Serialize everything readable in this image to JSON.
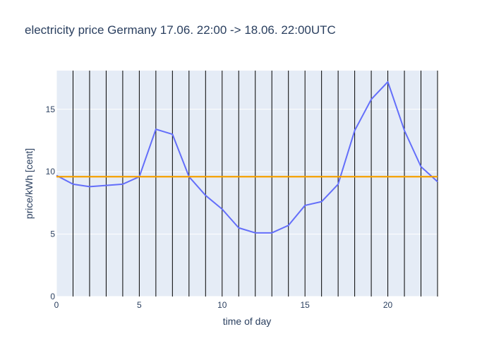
{
  "chart_data": {
    "type": "line",
    "title": "electricity price Germany 17.06. 22:00 -> 18.06. 22:00UTC",
    "xlabel": "time of day",
    "ylabel": "price/kWh [cent]",
    "xlim": [
      0,
      23
    ],
    "ylim": [
      0,
      18.1
    ],
    "x_ticks": [
      0,
      5,
      10,
      15,
      20
    ],
    "y_ticks": [
      0,
      5,
      10,
      15
    ],
    "grid": true,
    "vertical_lines": [
      1,
      2,
      3,
      4,
      5,
      6,
      7,
      8,
      9,
      10,
      11,
      12,
      13,
      14,
      15,
      16,
      17,
      18,
      19,
      20,
      21,
      22,
      23
    ],
    "series": [
      {
        "color": "#636efa",
        "x": [
          0,
          1,
          2,
          3,
          4,
          5,
          6,
          7,
          8,
          9,
          10,
          11,
          12,
          13,
          14,
          15,
          16,
          17,
          18,
          19,
          20,
          21,
          22,
          23
        ],
        "values": [
          9.7,
          9.0,
          8.8,
          8.9,
          9.0,
          9.6,
          13.4,
          13.0,
          9.6,
          8.1,
          7.0,
          5.5,
          5.1,
          5.1,
          5.7,
          7.3,
          7.6,
          9.0,
          13.3,
          15.8,
          17.2,
          13.3,
          10.4,
          9.2
        ]
      }
    ],
    "hline": {
      "value": 9.6,
      "color": "#f5a000"
    },
    "colors": {
      "plot_bg": "#e5ecf6",
      "text": "#2a3f5f",
      "grid": "#ffffff",
      "vline": "#000000"
    }
  }
}
